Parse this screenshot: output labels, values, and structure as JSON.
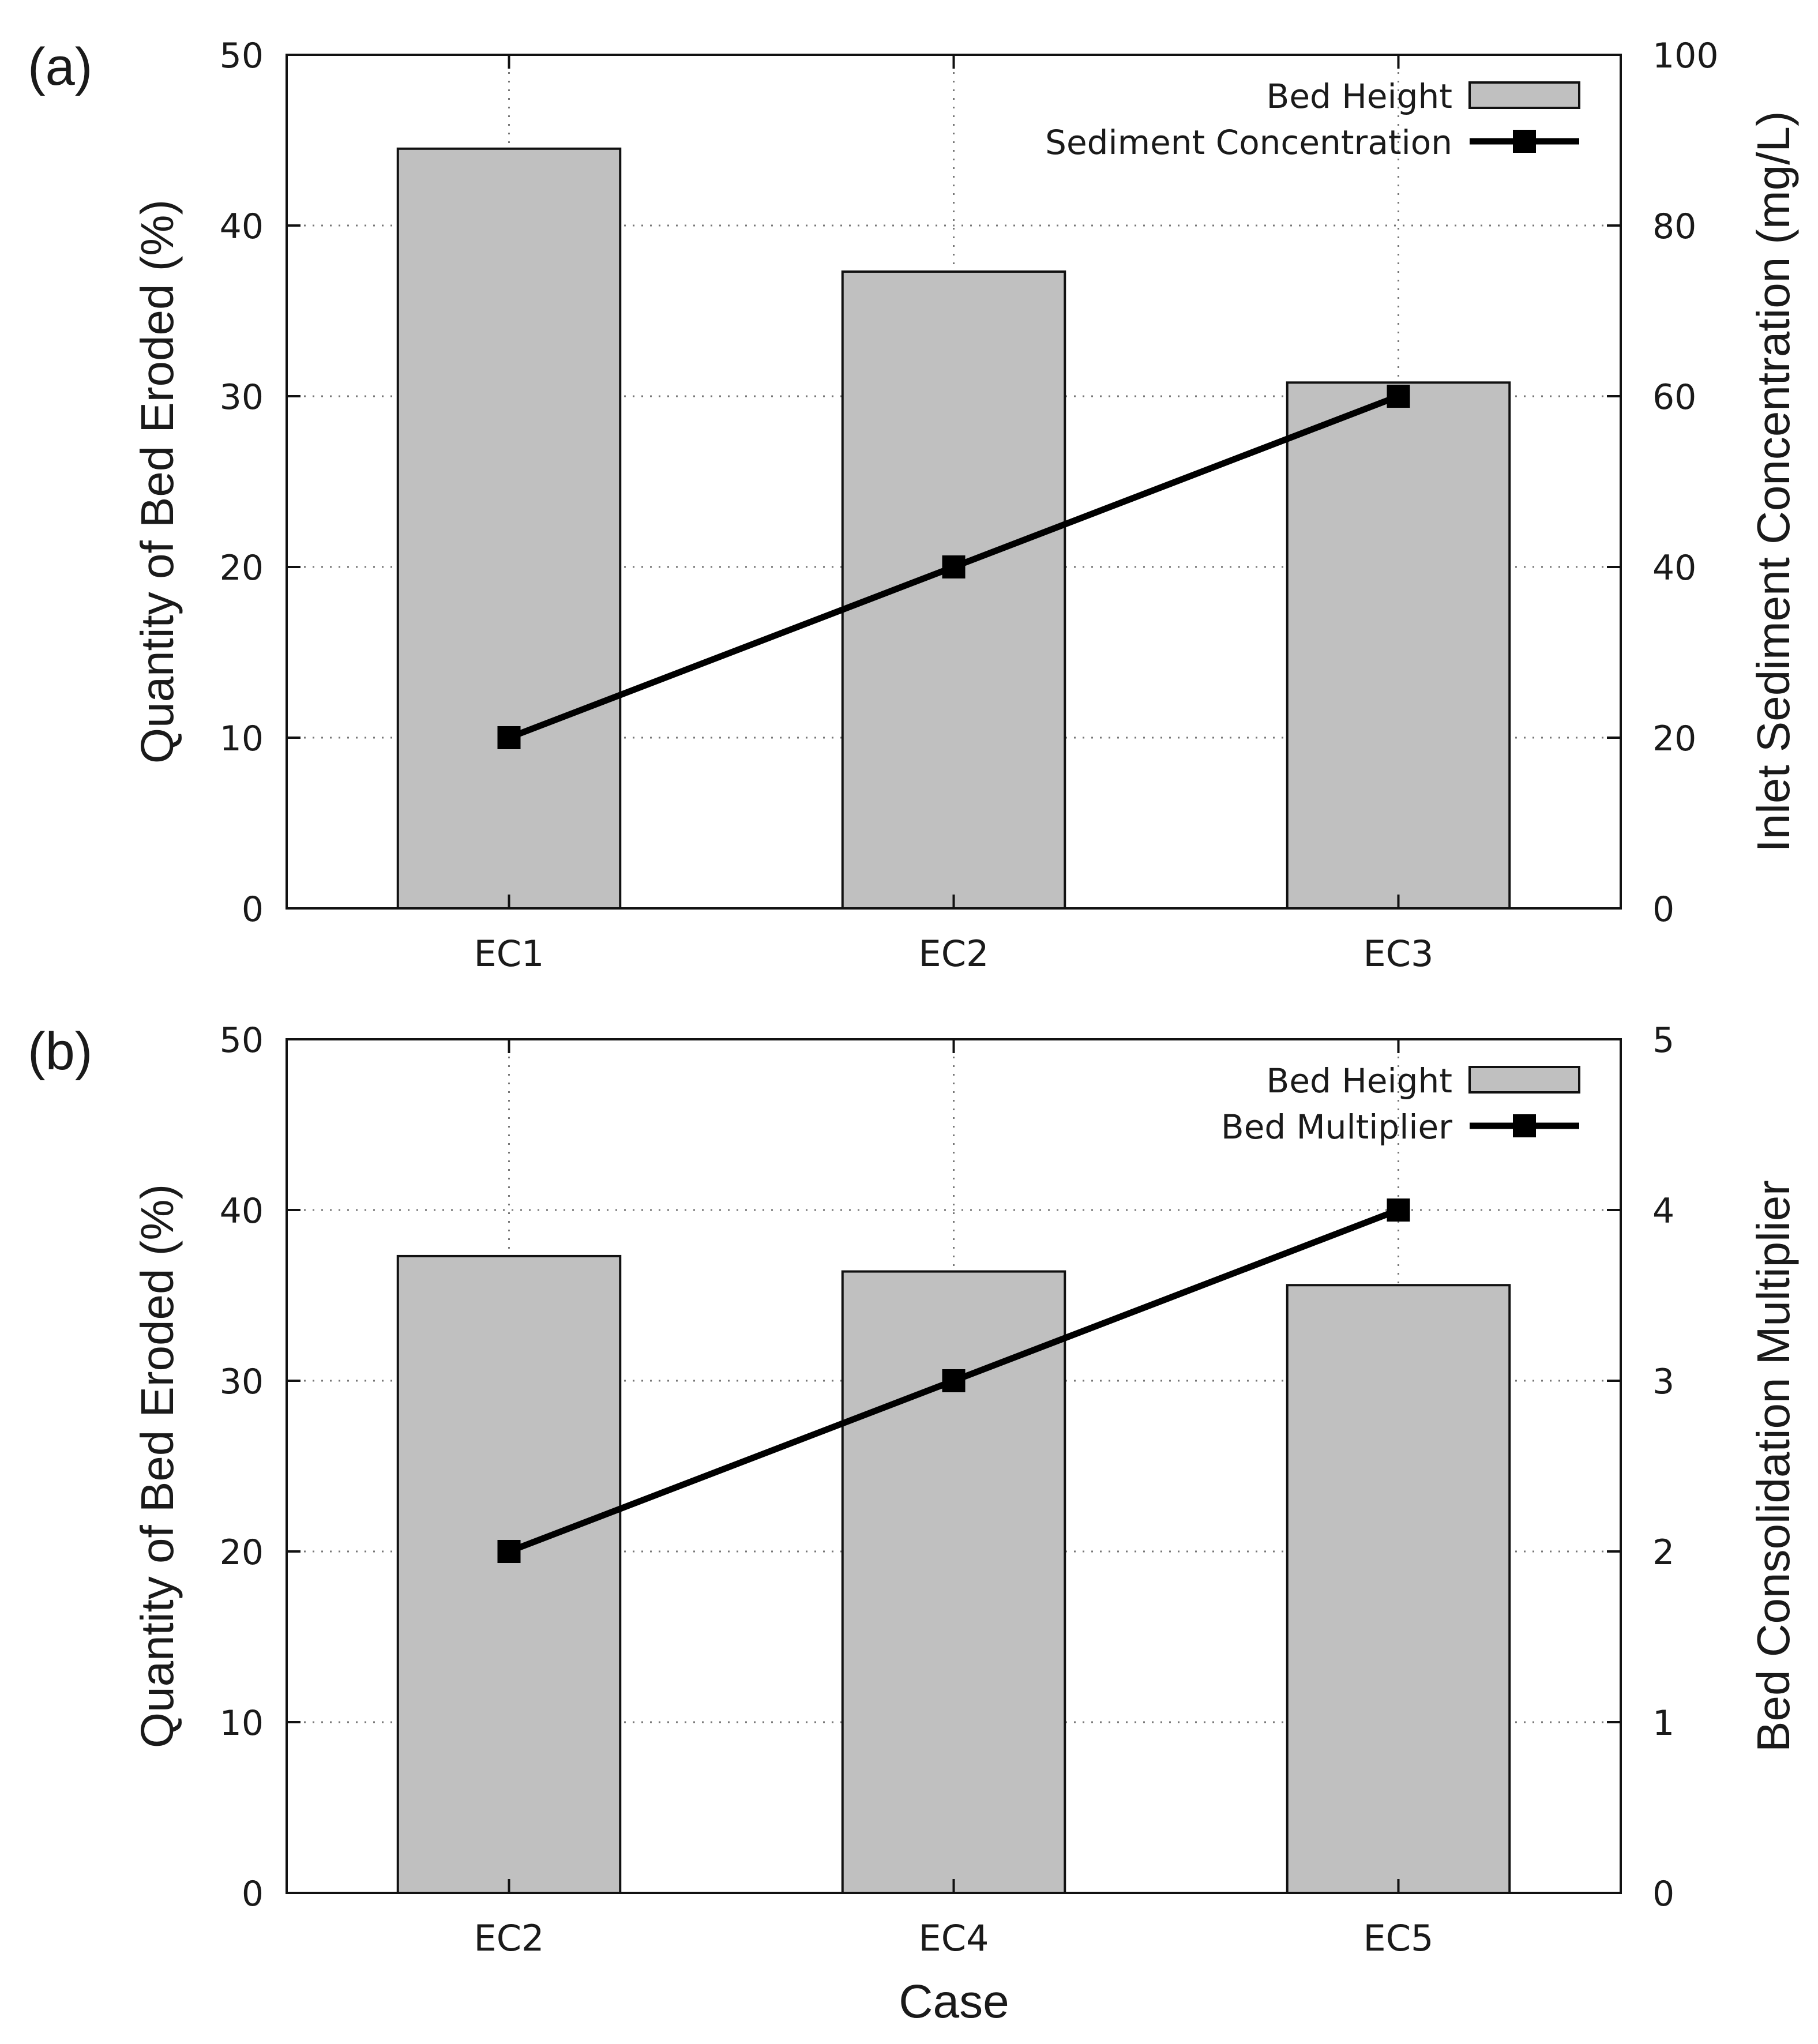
{
  "figure": {
    "shared_xlabel": "Case"
  },
  "colors": {
    "bar_fill": "#c0c0c0",
    "bar_stroke": "#111111",
    "line": "#000000",
    "grid": "#777777"
  },
  "chart_data": [
    {
      "type": "bar+line",
      "panel_label": "(a)",
      "categories": [
        "EC1",
        "EC2",
        "EC3"
      ],
      "bar_series": {
        "name": "Bed Height",
        "values": [
          44.5,
          37.3,
          30.8
        ]
      },
      "line_series": {
        "name": "Sediment Concentration",
        "values": [
          20,
          40,
          60
        ]
      },
      "ylabel": "Quantity of Bed Eroded (%)",
      "ylabel_right": "Inlet Sediment Concentration (mg/L)",
      "ylim": [
        0,
        50
      ],
      "yticks": [
        0,
        10,
        20,
        30,
        40,
        50
      ],
      "ylim_right": [
        0,
        100
      ],
      "yticks_right": [
        0,
        20,
        40,
        60,
        80,
        100
      ],
      "grid": true,
      "legend": "top-right"
    },
    {
      "type": "bar+line",
      "panel_label": "(b)",
      "categories": [
        "EC2",
        "EC4",
        "EC5"
      ],
      "bar_series": {
        "name": "Bed Height",
        "values": [
          37.3,
          36.4,
          35.6
        ]
      },
      "line_series": {
        "name": "Bed Multiplier",
        "values": [
          2,
          3,
          4
        ]
      },
      "ylabel": "Quantity of Bed Eroded (%)",
      "ylabel_right": "Bed Consolidation Multiplier",
      "ylim": [
        0,
        50
      ],
      "yticks": [
        0,
        10,
        20,
        30,
        40,
        50
      ],
      "ylim_right": [
        0,
        5
      ],
      "yticks_right": [
        0,
        1,
        2,
        3,
        4,
        5
      ],
      "grid": true,
      "legend": "top-right"
    }
  ]
}
